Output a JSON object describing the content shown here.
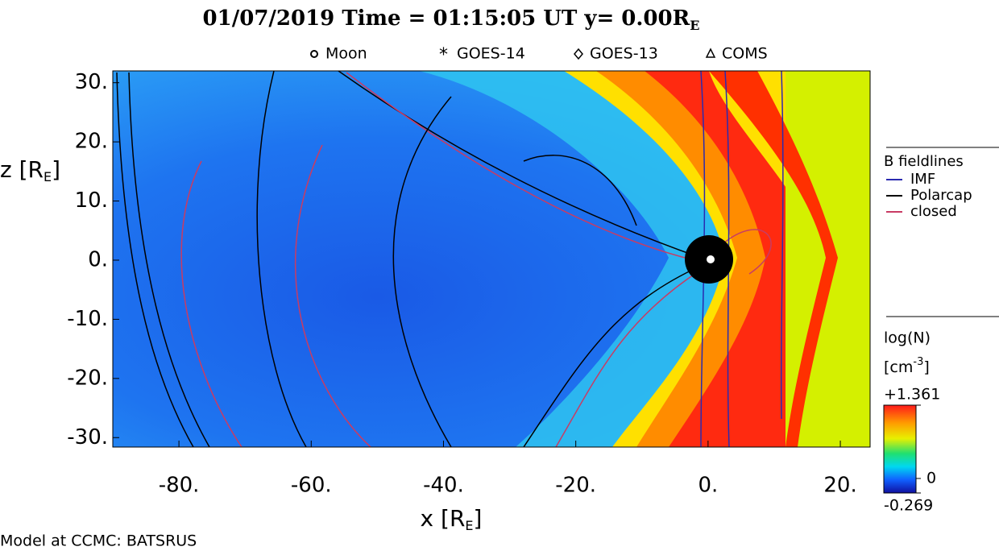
{
  "chart_data": {
    "type": "field-map",
    "title": [
      "01/07/2019 Time = 01:15:05 UT y= 0.00R",
      "E"
    ],
    "markers": [
      "Moon",
      "GOES-14",
      "GOES-13",
      "COMS"
    ],
    "xlabel": [
      "x [R",
      "E",
      "]"
    ],
    "ylabel": [
      "z [R",
      "E",
      "]"
    ],
    "xlim": [
      -90,
      24.5
    ],
    "ylim": [
      -31.6,
      32
    ],
    "xticks": [
      {
        "value": -80,
        "label": "-80."
      },
      {
        "value": -60,
        "label": "-60."
      },
      {
        "value": -40,
        "label": "-40."
      },
      {
        "value": -20,
        "label": "-20."
      },
      {
        "value": 0,
        "label": "0."
      },
      {
        "value": 20,
        "label": "20."
      }
    ],
    "yticks": [
      {
        "value": 30,
        "label": "30."
      },
      {
        "value": 20,
        "label": "20."
      },
      {
        "value": 10,
        "label": "10."
      },
      {
        "value": 0,
        "label": "0."
      },
      {
        "value": -10,
        "label": "-10."
      },
      {
        "value": -20,
        "label": "-20."
      },
      {
        "value": -30,
        "label": "-30."
      }
    ],
    "fieldline_legend": {
      "title": "B fieldlines",
      "series": [
        {
          "name": "IMF",
          "color": "#2a2ab0"
        },
        {
          "name": "Polarcap",
          "color": "#000000"
        },
        {
          "name": "closed",
          "color": "#c83c64"
        }
      ]
    },
    "colorbar": {
      "label": "log(N)",
      "unit": [
        "[cm",
        "-3",
        "]"
      ],
      "clim": [
        -0.269,
        1.361
      ],
      "ticks": [
        {
          "value": 1.361,
          "label": "+1.361"
        },
        0,
        -0.269
      ]
    },
    "footer": "Model at CCMC: BATSRUS"
  }
}
